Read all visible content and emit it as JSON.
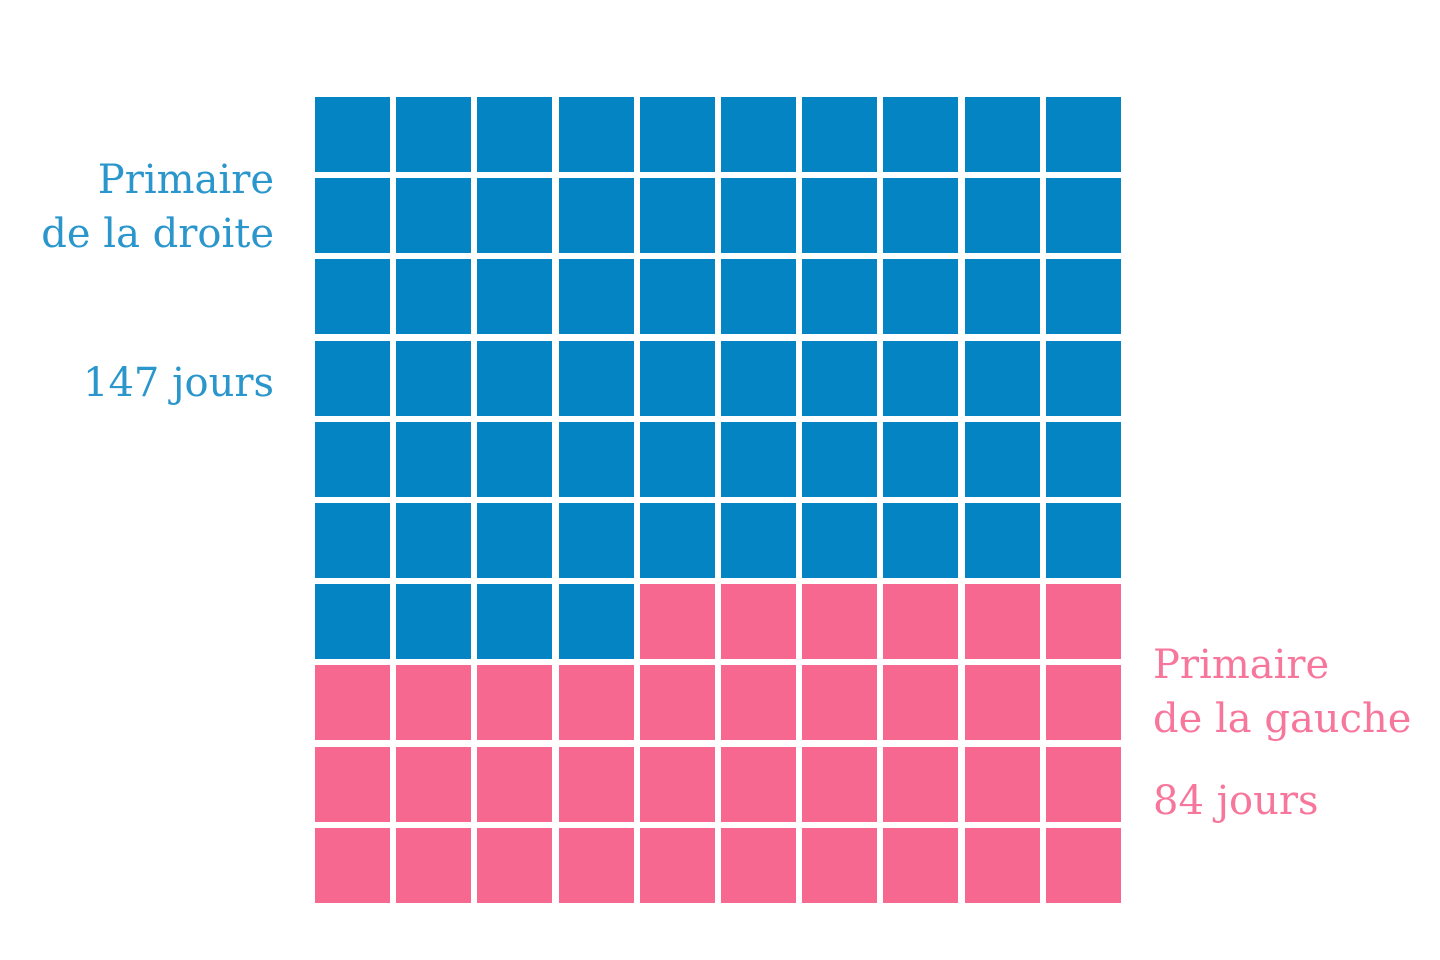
{
  "chart_data": {
    "type": "waffle",
    "title": "",
    "grid": {
      "rows": 10,
      "cols": 10,
      "total_cells": 100
    },
    "categories": [
      "Primaire de la droite",
      "Primaire de la gauche"
    ],
    "values": [
      147,
      84
    ],
    "units": "jours",
    "cells": [
      64,
      36
    ],
    "colors": [
      "#0584c4",
      "#f76890"
    ],
    "annotations": [
      {
        "text": "Primaire de la droite",
        "value": "147 jours",
        "position": "left"
      },
      {
        "text": "Primaire de la gauche",
        "value": "84 jours",
        "position": "right"
      }
    ]
  },
  "labels": {
    "droite": {
      "line1": "Primaire",
      "line2": "de la droite",
      "value": "147 jours"
    },
    "gauche": {
      "line1": "Primaire",
      "line2": "de la gauche",
      "value": "84 jours"
    }
  }
}
